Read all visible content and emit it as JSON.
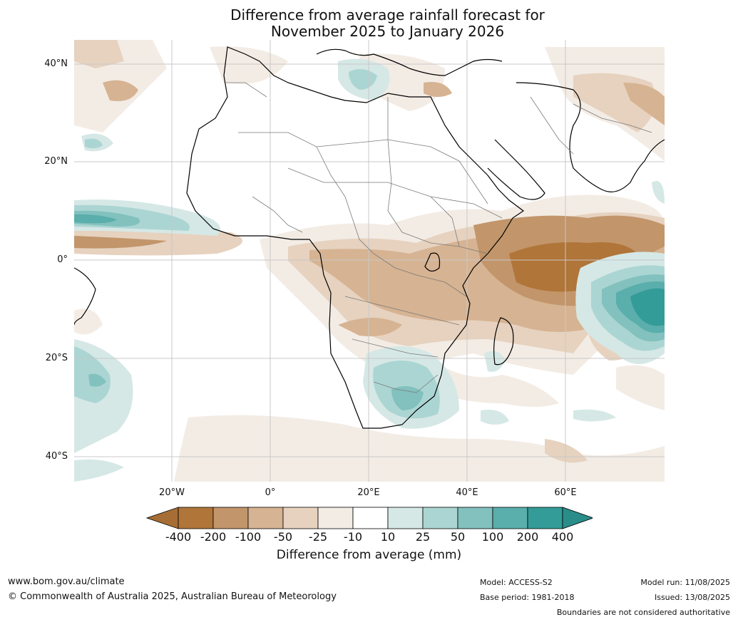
{
  "title_line1": "Difference from average rainfall forecast for",
  "title_line2": "November 2025 to January 2026",
  "map": {
    "lat_labels": [
      "40°N",
      "20°N",
      "0°",
      "20°S",
      "40°S"
    ],
    "lon_labels": [
      "20°W",
      "0°",
      "20°E",
      "40°E",
      "60°E"
    ]
  },
  "colorbar": {
    "title": "Difference from average (mm)",
    "ticks": [
      "-400",
      "-200",
      "-100",
      "-50",
      "-25",
      "-10",
      "10",
      "25",
      "50",
      "100",
      "200",
      "400"
    ],
    "colors": [
      "#a66e35",
      "#b07538",
      "#c2956b",
      "#d6b392",
      "#e6d2bf",
      "#f3ece5",
      "#ffffff",
      "#d5e8e6",
      "#abd5d3",
      "#82c1be",
      "#5aaeab",
      "#339c98",
      "#2a8d8a"
    ]
  },
  "footer": {
    "site": "www.bom.gov.au/climate",
    "copyright": "© Commonwealth of Australia 2025, Australian Bureau of Meteorology",
    "model": "Model: ACCESS-S2",
    "base_period": "Base period: 1981-2018",
    "model_run": "Model run: 11/08/2025",
    "issued": "Issued: 13/08/2025",
    "disclaimer": "Boundaries are not considered authoritative"
  }
}
